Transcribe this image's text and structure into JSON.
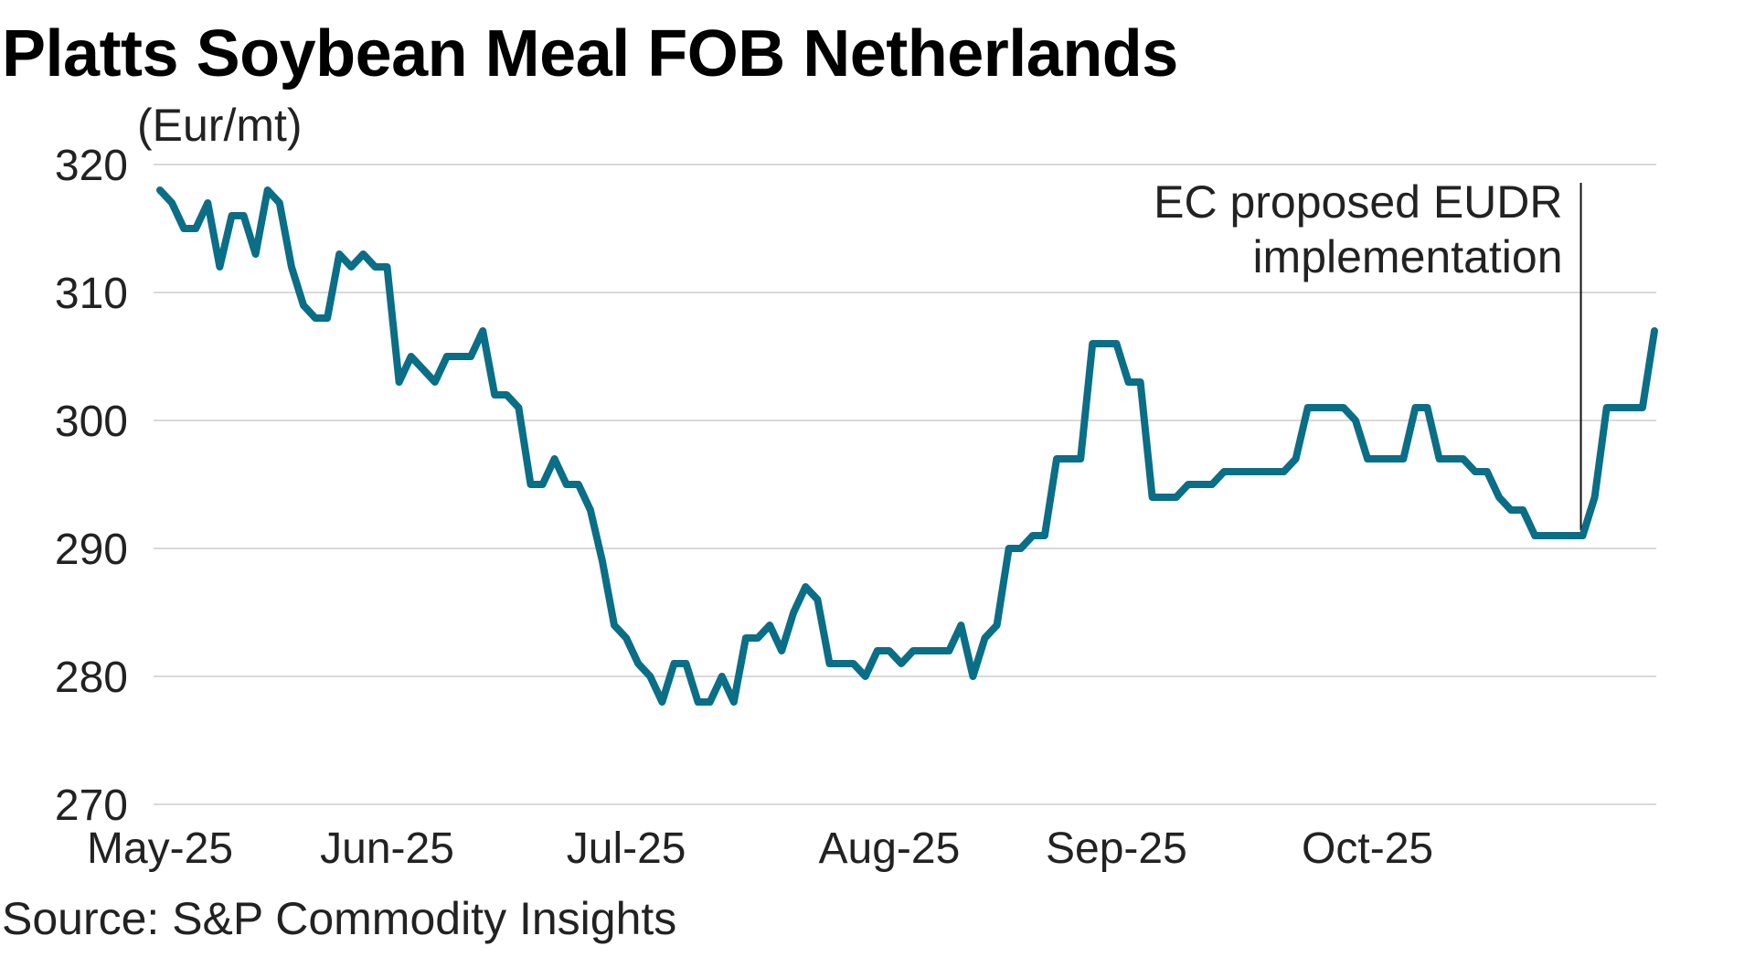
{
  "header": {
    "title": "Platts Soybean Meal FOB Netherlands",
    "unit": "(Eur/mt)"
  },
  "footer": {
    "source": "Source: S&P Commodity Insights"
  },
  "colors": {
    "line": "#0A6E86",
    "grid": "#d9d9d9",
    "text": "#222222"
  },
  "chart_data": {
    "type": "line",
    "title": "Platts Soybean Meal FOB Netherlands",
    "xlabel": "",
    "ylabel": "(Eur/mt)",
    "ylim": [
      270,
      320
    ],
    "yticks": [
      270,
      280,
      290,
      300,
      310,
      320
    ],
    "grid": true,
    "x_tick_labels": [
      "May-25",
      "Jun-25",
      "Jul-25",
      "Aug-25",
      "Sep-25",
      "Oct-25"
    ],
    "x_tick_index": [
      0,
      19,
      39,
      61,
      80,
      101
    ],
    "series": [
      {
        "name": "Platts Soybean Meal FOB Netherlands",
        "values": [
          318,
          317,
          315,
          315,
          317,
          312,
          316,
          316,
          313,
          318,
          317,
          312,
          309,
          308,
          308,
          313,
          312,
          313,
          312,
          312,
          303,
          305,
          304,
          303,
          305,
          305,
          305,
          307,
          302,
          302,
          301,
          295,
          295,
          297,
          295,
          295,
          293,
          289,
          284,
          283,
          281,
          280,
          278,
          281,
          281,
          278,
          278,
          280,
          278,
          283,
          283,
          284,
          282,
          285,
          287,
          286,
          281,
          281,
          281,
          280,
          282,
          282,
          281,
          282,
          282,
          282,
          282,
          284,
          280,
          283,
          284,
          290,
          290,
          291,
          291,
          297,
          297,
          297,
          306,
          306,
          306,
          303,
          303,
          294,
          294,
          294,
          295,
          295,
          295,
          296,
          296,
          296,
          296,
          296,
          296,
          297,
          301,
          301,
          301,
          301,
          300,
          297,
          297,
          297,
          297,
          301,
          301,
          297,
          297,
          297,
          296,
          296,
          294,
          293,
          293,
          291,
          291,
          291,
          291,
          291,
          294,
          301,
          301,
          301,
          301,
          307
        ]
      }
    ],
    "annotations": [
      {
        "lines": [
          "EC proposed EUDR",
          "implementation"
        ],
        "x_index": 119
      }
    ]
  }
}
